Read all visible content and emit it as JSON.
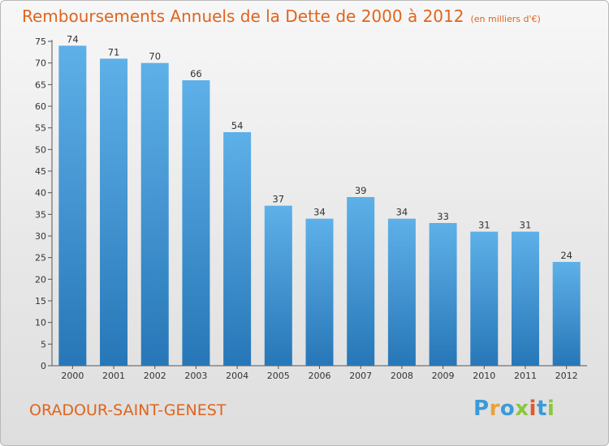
{
  "title": "Remboursements Annuels de la Dette de 2000 à 2012",
  "subtitle": "(en milliers d'€)",
  "commune": "ORADOUR-SAINT-GENEST",
  "logo": {
    "letters": [
      "P",
      "r",
      "o",
      "x",
      "i",
      "t",
      "i"
    ],
    "colors": [
      "#3b9ad9",
      "#e8a33c",
      "#3b9ad9",
      "#8cc63f",
      "#e05a2a",
      "#3b9ad9",
      "#8cc63f"
    ]
  },
  "colors": {
    "bar_top": "#5eb0e8",
    "bar_bottom": "#2777b8",
    "title": "#e0641d"
  },
  "chart_data": {
    "type": "bar",
    "title": "Remboursements Annuels de la Dette de 2000 à 2012",
    "categories": [
      "2000",
      "2001",
      "2002",
      "2003",
      "2004",
      "2005",
      "2006",
      "2007",
      "2008",
      "2009",
      "2010",
      "2011",
      "2012"
    ],
    "values": [
      74,
      71,
      70,
      66,
      54,
      37,
      34,
      39,
      34,
      33,
      31,
      31,
      24
    ],
    "ylim": [
      0,
      75
    ],
    "yticks": [
      0,
      5,
      10,
      15,
      20,
      25,
      30,
      35,
      40,
      45,
      50,
      55,
      60,
      65,
      70,
      75
    ],
    "grid": false,
    "legend": "none"
  }
}
